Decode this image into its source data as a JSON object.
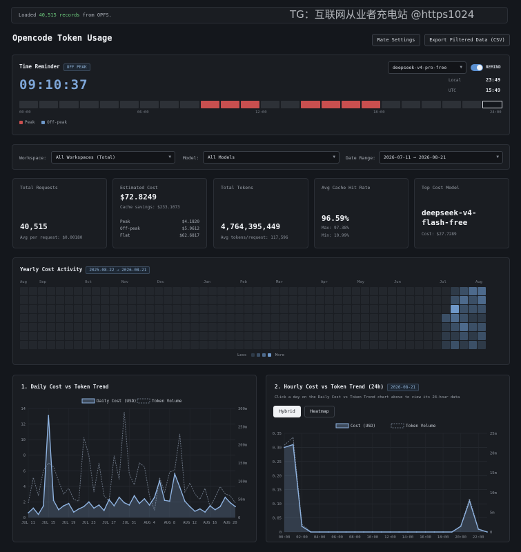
{
  "banner": {
    "prefix": "Loaded ",
    "count": "40,515 records",
    "suffix": " from OPFS."
  },
  "watermark": "TG：互联网从业者充电站 @https1024",
  "page_title": "Opencode Token Usage",
  "header": {
    "rate_settings": "Rate Settings",
    "export": "Export Filtered Data (CSV)"
  },
  "time_reminder": {
    "title": "Time Reminder",
    "status": "OFF PEAK",
    "clock": "09:10:37",
    "model_select": "deepseek-v4-pro-free",
    "remind_label": "REMIND",
    "local_label": "Local",
    "local_time": "23:49",
    "utc_label": "UTC",
    "utc_time": "15:49",
    "ticks": [
      "00:00",
      "06:00",
      "12:00",
      "18:00",
      "24:00"
    ],
    "legend_peak": "Peak",
    "legend_offpeak": "Off-peak",
    "segments": [
      0,
      0,
      0,
      0,
      0,
      0,
      0,
      0,
      0,
      1,
      1,
      1,
      0,
      0,
      1,
      1,
      1,
      1,
      0,
      0,
      0,
      0,
      0,
      2
    ]
  },
  "filters": {
    "workspace_label": "Workspace:",
    "workspace_value": "All Workspaces (Total)",
    "model_label": "Model:",
    "model_value": "All Models",
    "date_label": "Date Range:",
    "date_value": "2026-07-11 → 2026-08-21"
  },
  "cards": {
    "requests": {
      "label": "Total Requests",
      "value": "40,515",
      "sub": "Avg per request: $0.00180"
    },
    "cost": {
      "label": "Estimated Cost",
      "value": "$72.8249",
      "savings": "Cache savings: $233.1073",
      "rows": [
        {
          "k": "Peak",
          "v": "$4.1820"
        },
        {
          "k": "Off-peak",
          "v": "$5.9612"
        },
        {
          "k": "Flat",
          "v": "$62.6817"
        }
      ]
    },
    "tokens": {
      "label": "Total Tokens",
      "value": "4,764,395,449",
      "sub": "Avg tokens/request: 117,596"
    },
    "cache": {
      "label": "Avg Cache Hit Rate",
      "value": "96.59%",
      "max": "Max: 97.38%",
      "min": "Min: 10.99%"
    },
    "top_model": {
      "label": "Top Cost Model",
      "value_line1": "deepseek-v4-",
      "value_line2": "flash-free",
      "sub": "Cost: $27.7289"
    }
  },
  "yearly": {
    "title": "Yearly Cost Activity",
    "range": "2025-08-22 → 2026-08-21",
    "months": [
      "Aug",
      "Sep",
      "Oct",
      "Nov",
      "Dec",
      "Jan",
      "Feb",
      "Mar",
      "Apr",
      "May",
      "Jun",
      "Jul",
      "Aug"
    ],
    "less": "Less",
    "more": "More"
  },
  "daily_chart": {
    "title": "1. Daily Cost vs Token Trend",
    "legend_cost": "Daily Cost (USD)",
    "legend_tokens": "Token Volume"
  },
  "hourly_chart": {
    "title": "2. Hourly Cost vs Token Trend (24h)",
    "date_badge": "2026-08-21",
    "hint": "Click a day on the Daily Cost vs Token Trend chart above to view its 24-hour data",
    "tab_hybrid": "Hybrid",
    "tab_heatmap": "Heatmap",
    "legend_cost": "Cost (USD)",
    "legend_tokens": "Token Volume"
  },
  "chart_data": [
    {
      "type": "line",
      "title": "1. Daily Cost vs Token Trend",
      "x": [
        "JUL 11",
        "JUL 12",
        "JUL 13",
        "JUL 14",
        "JUL 15",
        "JUL 16",
        "JUL 17",
        "JUL 18",
        "JUL 19",
        "JUL 20",
        "JUL 21",
        "JUL 22",
        "JUL 23",
        "JUL 24",
        "JUL 25",
        "JUL 26",
        "JUL 27",
        "JUL 28",
        "JUL 29",
        "JUL 30",
        "JUL 31",
        "AUG 1",
        "AUG 2",
        "AUG 3",
        "AUG 4",
        "AUG 5",
        "AUG 6",
        "AUG 7",
        "AUG 8",
        "AUG 9",
        "AUG 10",
        "AUG 11",
        "AUG 12",
        "AUG 13",
        "AUG 14",
        "AUG 15",
        "AUG 16",
        "AUG 17",
        "AUG 18",
        "AUG 19",
        "AUG 20",
        "AUG 21"
      ],
      "x_tick_labels": [
        "JUL 11",
        "JUL 15",
        "JUL 19",
        "JUL 23",
        "JUL 27",
        "JUL 31",
        "AUG 4",
        "AUG 8",
        "AUG 12",
        "AUG 16",
        "AUG 20"
      ],
      "series": [
        {
          "name": "Daily Cost (USD)",
          "axis": "left",
          "values": [
            0.6,
            1.2,
            0.4,
            1.5,
            13.1,
            2.2,
            1.0,
            1.5,
            1.8,
            0.7,
            1.1,
            1.4,
            2.0,
            1.2,
            1.6,
            0.9,
            2.3,
            1.5,
            2.6,
            1.9,
            1.6,
            2.8,
            1.8,
            2.4,
            1.6,
            2.6,
            4.7,
            2.2,
            2.1,
            5.6,
            3.9,
            2.1,
            1.4,
            0.8,
            1.1,
            0.7,
            1.5,
            1.0,
            1.4,
            2.6,
            1.9,
            1.4
          ]
        },
        {
          "name": "Token Volume",
          "axis": "right",
          "values": [
            40000000,
            110000000,
            60000000,
            130000000,
            150000000,
            140000000,
            100000000,
            65000000,
            80000000,
            50000000,
            45000000,
            220000000,
            170000000,
            70000000,
            150000000,
            60000000,
            45000000,
            170000000,
            105000000,
            290000000,
            120000000,
            90000000,
            150000000,
            140000000,
            60000000,
            20000000,
            110000000,
            70000000,
            125000000,
            130000000,
            230000000,
            70000000,
            95000000,
            65000000,
            50000000,
            80000000,
            30000000,
            55000000,
            85000000,
            65000000,
            60000000,
            40000000
          ]
        }
      ],
      "ylim_left": [
        0,
        14
      ],
      "yticks_left": [
        "0",
        "2",
        "4",
        "6",
        "8",
        "10",
        "12",
        "14"
      ],
      "ylim_right": [
        0,
        300000000
      ],
      "yticks_right": [
        "0",
        "50m",
        "100m",
        "150m",
        "200m",
        "250m",
        "300m"
      ],
      "grid": true,
      "legend": "top-center"
    },
    {
      "type": "area",
      "title": "2. Hourly Cost vs Token Trend (24h)",
      "x": [
        "00:00",
        "01:00",
        "02:00",
        "03:00",
        "04:00",
        "05:00",
        "06:00",
        "07:00",
        "08:00",
        "09:00",
        "10:00",
        "11:00",
        "12:00",
        "13:00",
        "14:00",
        "15:00",
        "16:00",
        "17:00",
        "18:00",
        "19:00",
        "20:00",
        "21:00",
        "22:00",
        "23:00"
      ],
      "x_tick_labels": [
        "00:00",
        "02:00",
        "04:00",
        "06:00",
        "08:00",
        "10:00",
        "12:00",
        "14:00",
        "16:00",
        "18:00",
        "20:00",
        "22:00"
      ],
      "series": [
        {
          "name": "Cost (USD)",
          "axis": "left",
          "values": [
            0.3,
            0.31,
            0.02,
            0,
            0,
            0,
            0,
            0,
            0,
            0,
            0,
            0,
            0,
            0,
            0,
            0,
            0,
            0,
            0,
            0,
            0.02,
            0.11,
            0.01,
            0
          ]
        },
        {
          "name": "Token Volume",
          "axis": "right",
          "values": [
            22000000,
            24000000,
            2000000,
            0,
            0,
            0,
            0,
            0,
            0,
            0,
            0,
            0,
            0,
            0,
            0,
            0,
            0,
            0,
            0,
            0,
            1500000,
            8500000,
            800000,
            0
          ]
        }
      ],
      "ylim_left": [
        0,
        0.35
      ],
      "yticks_left": [
        "0",
        "0.05",
        "0.10",
        "0.15",
        "0.20",
        "0.25",
        "0.30",
        "0.35"
      ],
      "ylim_right": [
        0,
        25000000
      ],
      "yticks_right": [
        "0",
        "5m",
        "10m",
        "15m",
        "20m",
        "25m"
      ],
      "grid": true,
      "legend": "top-center"
    }
  ],
  "colors": {
    "accent": "#7ea6d8",
    "peak": "#c94f4f",
    "cost_line": "#8fb3e0",
    "token_line": "#6b7584",
    "bg": "#14171c",
    "panel": "#1a1d22"
  }
}
